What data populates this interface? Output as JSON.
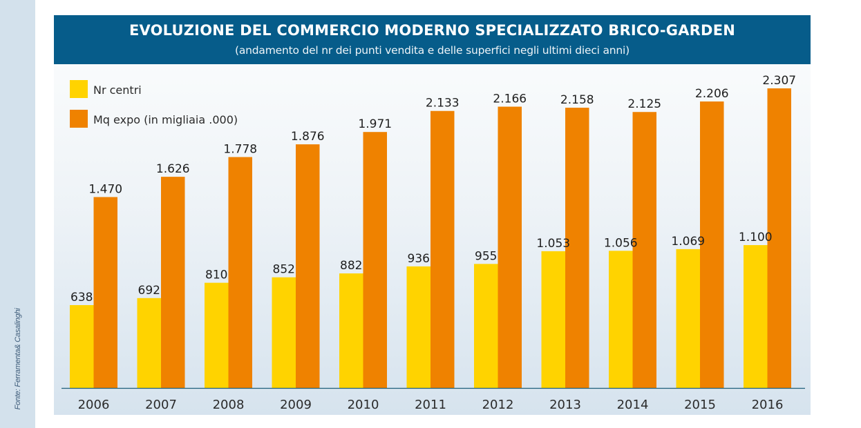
{
  "header": {
    "title": "EVOLUZIONE DEL COMMERCIO MODERNO SPECIALIZZATO BRICO-GARDEN",
    "subtitle": "(andamento del nr dei punti vendita e delle superfici negli ultimi dieci anni)"
  },
  "source": "Fonte: Ferramenta& Casalinghi",
  "colors": {
    "header_bg": "#065c8a",
    "nr_centri": "#ffd300",
    "mq_expo": "#ef8200",
    "axis": "#1f5f7a"
  },
  "chart_data": {
    "type": "bar",
    "title": "EVOLUZIONE DEL COMMERCIO MODERNO SPECIALIZZATO BRICO-GARDEN",
    "subtitle": "(andamento del nr dei punti vendita e delle superfici negli ultimi dieci anni)",
    "xlabel": "",
    "ylabel": "",
    "ylim": [
      0,
      2307
    ],
    "grid": false,
    "legend_position": "top-left",
    "categories": [
      "2006",
      "2007",
      "2008",
      "2009",
      "2010",
      "2011",
      "2012",
      "2013",
      "2014",
      "2015",
      "2016"
    ],
    "series": [
      {
        "name": "Nr centri",
        "color": "#ffd300",
        "values": [
          638,
          692,
          810,
          852,
          882,
          936,
          955,
          1053,
          1056,
          1069,
          1100
        ],
        "labels": [
          "638",
          "692",
          "810",
          "852",
          "882",
          "936",
          "955",
          "1.053",
          "1.056",
          "1.069",
          "1.100"
        ]
      },
      {
        "name": "Mq expo (in migliaia .000)",
        "color": "#ef8200",
        "values": [
          1470,
          1626,
          1778,
          1876,
          1971,
          2133,
          2166,
          2158,
          2125,
          2206,
          2307
        ],
        "labels": [
          "1.470",
          "1.626",
          "1.778",
          "1.876",
          "1.971",
          "2.133",
          "2.166",
          "2.158",
          "2.125",
          "2.206",
          "2.307"
        ]
      }
    ]
  }
}
